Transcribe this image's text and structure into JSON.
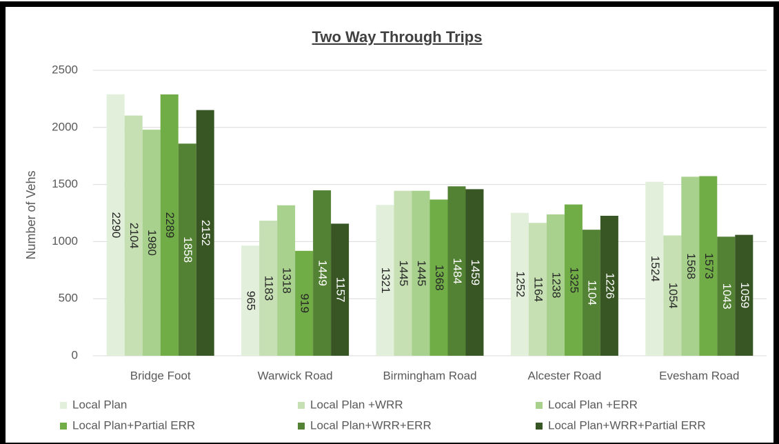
{
  "chart_data": {
    "type": "bar",
    "title": "Two Way Through Trips",
    "y_label": "Number of Vehs",
    "categories": [
      "Bridge Foot",
      "Warwick Road",
      "Birmingham Road",
      "Alcester Road",
      "Evesham Road"
    ],
    "series": [
      {
        "name": "Local Plan",
        "color": "#e2efda",
        "values": [
          2290,
          965,
          1321,
          1252,
          1524
        ]
      },
      {
        "name": "Local Plan +WRR",
        "color": "#c6e0b4",
        "values": [
          2104,
          1183,
          1445,
          1164,
          1054
        ]
      },
      {
        "name": "Local Plan +ERR",
        "color": "#a9d18e",
        "values": [
          1980,
          1318,
          1445,
          1238,
          1568
        ]
      },
      {
        "name": "Local Plan+Partial ERR",
        "color": "#70ad47",
        "values": [
          2289,
          919,
          1368,
          1325,
          1573
        ]
      },
      {
        "name": "Local Plan+WRR+ERR",
        "color": "#548235",
        "values": [
          1858,
          1449,
          1484,
          1104,
          1043
        ]
      },
      {
        "name": "Local Plan+WRR+Partial ERR",
        "color": "#375623",
        "values": [
          2152,
          1157,
          1459,
          1226,
          1059
        ]
      }
    ],
    "ylim": [
      0,
      2500
    ],
    "yticks": [
      0,
      500,
      1000,
      1500,
      2000,
      2500
    ],
    "grid": true,
    "legend": "bottom"
  }
}
